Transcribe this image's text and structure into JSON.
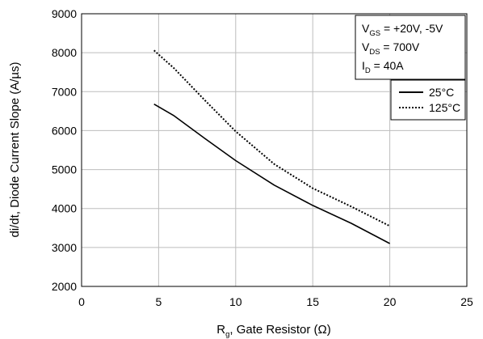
{
  "chart_data": {
    "type": "line",
    "title": "",
    "xlabel": {
      "main": "R",
      "sub": "g",
      "rest": ", Gate Resistor (Ω)"
    },
    "ylabel": "di/dt,  Diode Current Slope (A/µs)",
    "xlim": [
      0,
      25
    ],
    "ylim": [
      2000,
      9000
    ],
    "xticks": [
      "0",
      "5",
      "10",
      "15",
      "20",
      "25"
    ],
    "yticks": [
      "2000",
      "3000",
      "4000",
      "5000",
      "6000",
      "7000",
      "8000",
      "9000"
    ],
    "grid": true,
    "conditions": [
      {
        "main": "V",
        "sub": "GS",
        "rest": " = +20V, -5V"
      },
      {
        "main": "V",
        "sub": "DS",
        "rest": " = 700V"
      },
      {
        "main": "I",
        "sub": "D",
        "rest": " = 40A"
      }
    ],
    "legend_position": "top-right",
    "series": [
      {
        "name": "25°C",
        "style": "solid",
        "x": [
          4.7,
          6,
          8,
          10,
          12.5,
          15,
          17.5,
          20
        ],
        "y": [
          6680,
          6380,
          5800,
          5230,
          4600,
          4080,
          3620,
          3100
        ]
      },
      {
        "name": "125°C",
        "style": "dotted",
        "x": [
          4.7,
          6,
          8,
          10,
          12.5,
          15,
          17.5,
          20
        ],
        "y": [
          8060,
          7600,
          6780,
          5980,
          5140,
          4520,
          4050,
          3550
        ]
      }
    ]
  }
}
